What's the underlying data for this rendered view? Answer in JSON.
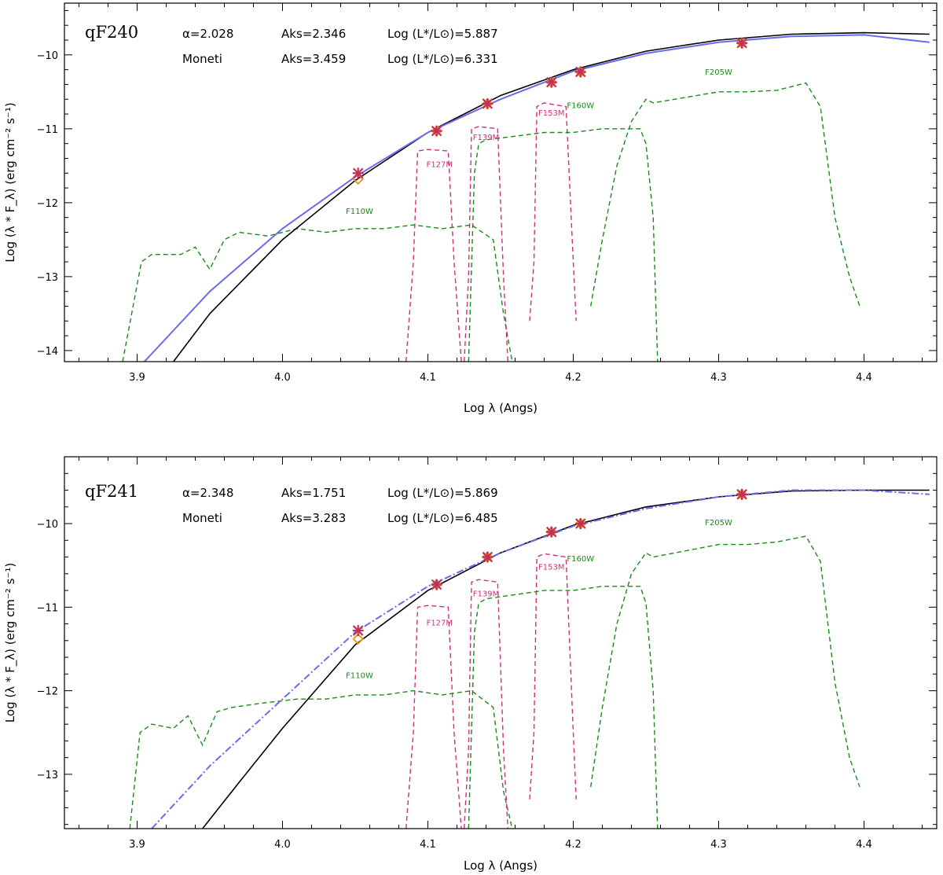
{
  "chart_data": [
    {
      "type": "line",
      "title": "",
      "xlabel": "Log λ (Angs)",
      "ylabel": "Log (λ * F_λ)   (erg cm⁻² s⁻¹)",
      "xlim": [
        3.85,
        4.45
      ],
      "ylim": [
        -14.15,
        -9.3
      ],
      "xticks": [
        3.9,
        4.0,
        4.1,
        4.2,
        4.3,
        4.4
      ],
      "xtick_labels": [
        "3.9",
        "4.0",
        "4.1",
        "4.2",
        "4.3",
        "4.4"
      ],
      "yticks": [
        -14,
        -13,
        -12,
        -11,
        -10
      ],
      "ytick_labels": [
        "−14",
        "−13",
        "−12",
        "−11",
        "−10"
      ],
      "annotations": {
        "star_name": "qF240",
        "alpha": "α=2.028",
        "aks_fit": "Aks=2.346",
        "logl_fit": "Log (L*/L⊙)=5.887",
        "source": "Moneti",
        "aks_moneti": "Aks=3.459",
        "logl_moneti": "Log (L*/L⊙)=6.331"
      },
      "series": [
        {
          "name": "model (black)",
          "color": "#000000",
          "style": "solid",
          "x": [
            3.925,
            3.95,
            4.0,
            4.05,
            4.1,
            4.15,
            4.2,
            4.25,
            4.3,
            4.35,
            4.4,
            4.445
          ],
          "y": [
            -14.15,
            -13.5,
            -12.5,
            -11.7,
            -11.05,
            -10.55,
            -10.2,
            -9.95,
            -9.8,
            -9.72,
            -9.7,
            -9.72
          ]
        },
        {
          "name": "spectrum (blue)",
          "color": "#6b6bee",
          "style": "solid",
          "x": [
            3.905,
            3.95,
            4.0,
            4.05,
            4.1,
            4.15,
            4.2,
            4.25,
            4.3,
            4.35,
            4.4,
            4.445
          ],
          "y": [
            -14.15,
            -13.2,
            -12.35,
            -11.65,
            -11.05,
            -10.6,
            -10.22,
            -9.98,
            -9.83,
            -9.75,
            -9.73,
            -9.83
          ]
        }
      ],
      "photometry": {
        "x": [
          4.052,
          4.106,
          4.141,
          4.185,
          4.205,
          4.316
        ],
        "model_y": [
          -11.68,
          -11.03,
          -10.66,
          -10.37,
          -10.23,
          -9.84
        ],
        "observed_y": [
          -11.6,
          -11.03,
          -10.66,
          -10.37,
          -10.23,
          -9.84
        ]
      },
      "filters": [
        {
          "name": "F110W",
          "color": "#1a8a1a",
          "label_x": 4.053,
          "label_y": -12.15,
          "x": [
            3.89,
            3.903,
            3.91,
            3.93,
            3.94,
            3.95,
            3.96,
            3.97,
            3.99,
            4.01,
            4.03,
            4.05,
            4.07,
            4.09,
            4.11,
            4.13,
            4.145,
            4.152,
            4.158
          ],
          "y": [
            -14.15,
            -12.8,
            -12.7,
            -12.7,
            -12.6,
            -12.9,
            -12.5,
            -12.4,
            -12.45,
            -12.35,
            -12.4,
            -12.35,
            -12.35,
            -12.3,
            -12.35,
            -12.3,
            -12.5,
            -13.5,
            -14.15
          ]
        },
        {
          "name": "F127M",
          "color": "#d0307a",
          "label_x": 4.108,
          "label_y": -11.52,
          "x": [
            4.085,
            4.09,
            4.093,
            4.1,
            4.114,
            4.118,
            4.123
          ],
          "y": [
            -14.15,
            -12.8,
            -11.3,
            -11.28,
            -11.3,
            -12.8,
            -14.15
          ]
        },
        {
          "name": "F139M",
          "color": "#d0307a",
          "label_x": 4.14,
          "label_y": -11.15,
          "x": [
            4.125,
            4.128,
            4.13,
            4.135,
            4.148,
            4.152,
            4.155
          ],
          "y": [
            -14.15,
            -13.0,
            -11.0,
            -10.97,
            -11.0,
            -13.0,
            -14.15
          ]
        },
        {
          "name": "F153M",
          "color": "#d0307a",
          "label_x": 4.185,
          "label_y": -10.82,
          "x": [
            4.17,
            4.173,
            4.175,
            4.18,
            4.195,
            4.2,
            4.202
          ],
          "y": [
            -13.6,
            -12.8,
            -10.7,
            -10.65,
            -10.7,
            -12.8,
            -13.6
          ]
        },
        {
          "name": "F160W",
          "color": "#1a8a1a",
          "label_x": 4.205,
          "label_y": -10.72,
          "x": [
            4.128,
            4.132,
            4.135,
            4.14,
            4.16,
            4.18,
            4.2,
            4.22,
            4.24,
            4.246,
            4.25,
            4.255,
            4.258
          ],
          "y": [
            -14.15,
            -11.6,
            -11.2,
            -11.15,
            -11.1,
            -11.05,
            -11.05,
            -11.0,
            -11.0,
            -11.0,
            -11.2,
            -12.2,
            -14.15
          ]
        },
        {
          "name": "F205W",
          "color": "#1a8a1a",
          "label_x": 4.3,
          "label_y": -10.27,
          "x": [
            4.212,
            4.22,
            4.23,
            4.24,
            4.25,
            4.255,
            4.27,
            4.3,
            4.32,
            4.34,
            4.36,
            4.37,
            4.38,
            4.39,
            4.397
          ],
          "y": [
            -13.4,
            -12.5,
            -11.5,
            -10.9,
            -10.6,
            -10.65,
            -10.6,
            -10.5,
            -10.5,
            -10.48,
            -10.38,
            -10.7,
            -12.2,
            -13.0,
            -13.4
          ]
        }
      ]
    },
    {
      "type": "line",
      "title": "",
      "xlabel": "Log λ (Angs)",
      "ylabel": "Log (λ * F_λ)   (erg cm⁻² s⁻¹)",
      "xlim": [
        3.85,
        4.45
      ],
      "ylim": [
        -13.65,
        -9.2
      ],
      "xticks": [
        3.9,
        4.0,
        4.1,
        4.2,
        4.3,
        4.4
      ],
      "xtick_labels": [
        "3.9",
        "4.0",
        "4.1",
        "4.2",
        "4.3",
        "4.4"
      ],
      "yticks": [
        -13,
        -12,
        -11,
        -10
      ],
      "ytick_labels": [
        "−13",
        "−12",
        "−11",
        "−10"
      ],
      "annotations": {
        "star_name": "qF241",
        "alpha": "α=2.348",
        "aks_fit": "Aks=1.751",
        "logl_fit": "Log (L*/L⊙)=5.869",
        "source": "Moneti",
        "aks_moneti": "Aks=3.283",
        "logl_moneti": "Log (L*/L⊙)=6.485"
      },
      "series": [
        {
          "name": "model (black)",
          "color": "#000000",
          "style": "solid",
          "x": [
            3.945,
            3.97,
            4.0,
            4.05,
            4.1,
            4.15,
            4.2,
            4.25,
            4.3,
            4.35,
            4.4,
            4.445
          ],
          "y": [
            -13.65,
            -13.1,
            -12.45,
            -11.45,
            -10.8,
            -10.35,
            -10.02,
            -9.8,
            -9.68,
            -9.61,
            -9.6,
            -9.6
          ]
        },
        {
          "name": "spectrum (blue)",
          "color": "#6b6bee",
          "style": "dashdot",
          "x": [
            3.91,
            3.95,
            4.0,
            4.05,
            4.1,
            4.15,
            4.2,
            4.25,
            4.3,
            4.35,
            4.4,
            4.445
          ],
          "y": [
            -13.65,
            -12.9,
            -12.1,
            -11.3,
            -10.75,
            -10.35,
            -10.03,
            -9.82,
            -9.68,
            -9.6,
            -9.6,
            -9.65
          ]
        }
      ],
      "photometry": {
        "x": [
          4.052,
          4.106,
          4.141,
          4.185,
          4.205,
          4.316
        ],
        "model_y": [
          -11.38,
          -10.73,
          -10.4,
          -10.1,
          -10.0,
          -9.65
        ],
        "observed_y": [
          -11.28,
          -10.73,
          -10.4,
          -10.1,
          -10.0,
          -9.65
        ]
      },
      "filters": [
        {
          "name": "F110W",
          "color": "#1a8a1a",
          "label_x": 4.053,
          "label_y": -11.85,
          "x": [
            3.895,
            3.902,
            3.91,
            3.925,
            3.935,
            3.945,
            3.955,
            3.965,
            3.985,
            4.01,
            4.03,
            4.05,
            4.07,
            4.09,
            4.11,
            4.13,
            4.145,
            4.152,
            4.158
          ],
          "y": [
            -13.65,
            -12.5,
            -12.4,
            -12.45,
            -12.3,
            -12.65,
            -12.25,
            -12.2,
            -12.15,
            -12.1,
            -12.1,
            -12.05,
            -12.05,
            -12.0,
            -12.05,
            -12.0,
            -12.2,
            -13.2,
            -13.65
          ]
        },
        {
          "name": "F127M",
          "color": "#d0307a",
          "label_x": 4.108,
          "label_y": -11.22,
          "x": [
            4.085,
            4.09,
            4.093,
            4.1,
            4.114,
            4.118,
            4.123
          ],
          "y": [
            -13.65,
            -12.5,
            -11.0,
            -10.98,
            -11.0,
            -12.5,
            -13.65
          ]
        },
        {
          "name": "F139M",
          "color": "#d0307a",
          "label_x": 4.14,
          "label_y": -10.87,
          "x": [
            4.125,
            4.128,
            4.13,
            4.135,
            4.148,
            4.152,
            4.155
          ],
          "y": [
            -13.65,
            -12.7,
            -10.7,
            -10.67,
            -10.7,
            -12.7,
            -13.65
          ]
        },
        {
          "name": "F153M",
          "color": "#d0307a",
          "label_x": 4.185,
          "label_y": -10.55,
          "x": [
            4.17,
            4.173,
            4.175,
            4.18,
            4.195,
            4.2,
            4.202
          ],
          "y": [
            -13.3,
            -12.5,
            -10.4,
            -10.36,
            -10.4,
            -12.5,
            -13.3
          ]
        },
        {
          "name": "F160W",
          "color": "#1a8a1a",
          "label_x": 4.205,
          "label_y": -10.45,
          "x": [
            4.128,
            4.132,
            4.135,
            4.14,
            4.16,
            4.18,
            4.2,
            4.22,
            4.24,
            4.246,
            4.25,
            4.255,
            4.258
          ],
          "y": [
            -13.65,
            -11.3,
            -10.95,
            -10.9,
            -10.85,
            -10.8,
            -10.8,
            -10.75,
            -10.75,
            -10.75,
            -10.95,
            -12.0,
            -13.65
          ]
        },
        {
          "name": "F205W",
          "color": "#1a8a1a",
          "label_x": 4.3,
          "label_y": -10.02,
          "x": [
            4.212,
            4.22,
            4.23,
            4.24,
            4.25,
            4.255,
            4.27,
            4.3,
            4.32,
            4.34,
            4.36,
            4.37,
            4.38,
            4.39,
            4.397
          ],
          "y": [
            -13.15,
            -12.2,
            -11.2,
            -10.6,
            -10.35,
            -10.4,
            -10.35,
            -10.25,
            -10.25,
            -10.22,
            -10.15,
            -10.45,
            -11.9,
            -12.8,
            -13.15
          ]
        }
      ]
    }
  ]
}
